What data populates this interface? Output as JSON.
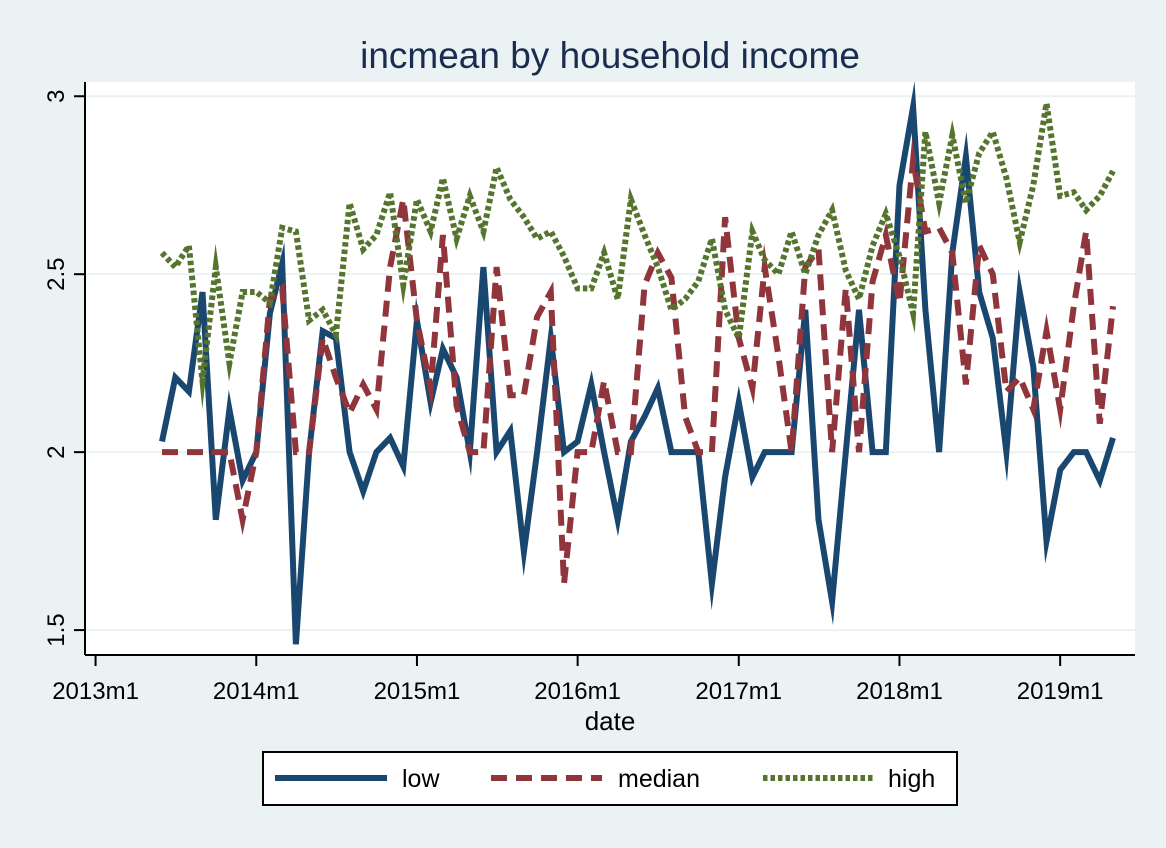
{
  "chart_data": {
    "type": "line",
    "title": "incmean by household income",
    "xlabel": "date",
    "ylabel": "",
    "xlim": [
      "2012-12-08",
      "2019-06-20"
    ],
    "ylim": [
      1.43,
      3.04
    ],
    "x_ticks": [
      "2013m1",
      "2014m1",
      "2015m1",
      "2016m1",
      "2017m1",
      "2018m1",
      "2019m1"
    ],
    "x_tick_dates": [
      "2013-01",
      "2014-01",
      "2015-01",
      "2016-01",
      "2017-01",
      "2018-01",
      "2019-01"
    ],
    "y_ticks": [
      1.5,
      2,
      2.5,
      3
    ],
    "y_tick_labels": [
      "1.5",
      "2",
      "2.5",
      "3"
    ],
    "grid": true,
    "legend_position": "bottom",
    "x": [
      "2013-06",
      "2013-07",
      "2013-08",
      "2013-09",
      "2013-10",
      "2013-11",
      "2013-12",
      "2014-01",
      "2014-02",
      "2014-03",
      "2014-04",
      "2014-05",
      "2014-06",
      "2014-07",
      "2014-08",
      "2014-09",
      "2014-10",
      "2014-11",
      "2014-12",
      "2015-01",
      "2015-02",
      "2015-03",
      "2015-04",
      "2015-05",
      "2015-06",
      "2015-07",
      "2015-08",
      "2015-09",
      "2015-10",
      "2015-11",
      "2015-12",
      "2016-01",
      "2016-02",
      "2016-03",
      "2016-04",
      "2016-05",
      "2016-06",
      "2016-07",
      "2016-08",
      "2016-09",
      "2016-10",
      "2016-11",
      "2016-12",
      "2017-01",
      "2017-02",
      "2017-03",
      "2017-04",
      "2017-05",
      "2017-06",
      "2017-07",
      "2017-08",
      "2017-09",
      "2017-10",
      "2017-11",
      "2017-12",
      "2018-01",
      "2018-02",
      "2018-03",
      "2018-04",
      "2018-05",
      "2018-06",
      "2018-07",
      "2018-08",
      "2018-09",
      "2018-10",
      "2018-11",
      "2018-12",
      "2019-01",
      "2019-02",
      "2019-03",
      "2019-04",
      "2019-05"
    ],
    "series": [
      {
        "name": "low",
        "color": "#1a476f",
        "dash": "solid",
        "values": [
          2.03,
          2.21,
          2.17,
          2.45,
          1.81,
          2.12,
          1.92,
          2.0,
          2.39,
          2.53,
          1.46,
          2.0,
          2.34,
          2.32,
          2.0,
          1.89,
          2.0,
          2.04,
          1.96,
          2.37,
          2.14,
          2.29,
          2.21,
          2.0,
          2.52,
          2.0,
          2.06,
          1.72,
          2.0,
          2.32,
          2.0,
          2.03,
          2.19,
          2.0,
          1.81,
          2.03,
          2.1,
          2.18,
          2.0,
          2.0,
          2.0,
          1.63,
          1.93,
          2.14,
          1.93,
          2.0,
          2.0,
          2.0,
          2.4,
          1.81,
          1.58,
          2.0,
          2.4,
          2.0,
          2.0,
          2.75,
          2.97,
          2.4,
          2.0,
          2.56,
          2.83,
          2.45,
          2.32,
          2.0,
          2.45,
          2.24,
          1.75,
          1.95,
          2.0,
          2.0,
          1.92,
          2.04
        ]
      },
      {
        "name": "median",
        "color": "#90353b",
        "dash": "dashed",
        "values": [
          2.0,
          2.0,
          2.0,
          2.0,
          2.0,
          2.0,
          1.81,
          2.0,
          2.43,
          2.46,
          2.0,
          2.0,
          2.32,
          2.21,
          2.11,
          2.19,
          2.12,
          2.52,
          2.71,
          2.37,
          2.18,
          2.61,
          2.13,
          2.0,
          2.0,
          2.52,
          2.16,
          2.16,
          2.38,
          2.45,
          1.63,
          2.0,
          2.0,
          2.2,
          2.0,
          2.0,
          2.47,
          2.56,
          2.49,
          2.1,
          2.0,
          2.0,
          2.66,
          2.32,
          2.18,
          2.52,
          2.27,
          2.0,
          2.52,
          2.57,
          2.0,
          2.46,
          2.0,
          2.48,
          2.61,
          2.42,
          2.82,
          2.62,
          2.63,
          2.56,
          2.19,
          2.58,
          2.5,
          2.17,
          2.21,
          2.12,
          2.34,
          2.12,
          2.41,
          2.62,
          2.08,
          2.41
        ]
      },
      {
        "name": "high",
        "color": "#55752f",
        "dash": "dotted",
        "values": [
          2.56,
          2.52,
          2.58,
          2.2,
          2.52,
          2.25,
          2.45,
          2.45,
          2.42,
          2.63,
          2.62,
          2.37,
          2.4,
          2.33,
          2.7,
          2.57,
          2.61,
          2.73,
          2.47,
          2.71,
          2.62,
          2.77,
          2.6,
          2.72,
          2.62,
          2.8,
          2.71,
          2.66,
          2.6,
          2.62,
          2.55,
          2.46,
          2.46,
          2.56,
          2.43,
          2.71,
          2.61,
          2.52,
          2.4,
          2.43,
          2.48,
          2.6,
          2.4,
          2.32,
          2.62,
          2.54,
          2.5,
          2.62,
          2.5,
          2.61,
          2.68,
          2.51,
          2.43,
          2.58,
          2.67,
          2.55,
          2.39,
          2.9,
          2.7,
          2.89,
          2.7,
          2.84,
          2.9,
          2.77,
          2.59,
          2.75,
          2.98,
          2.72,
          2.73,
          2.68,
          2.72,
          2.79
        ]
      }
    ]
  }
}
